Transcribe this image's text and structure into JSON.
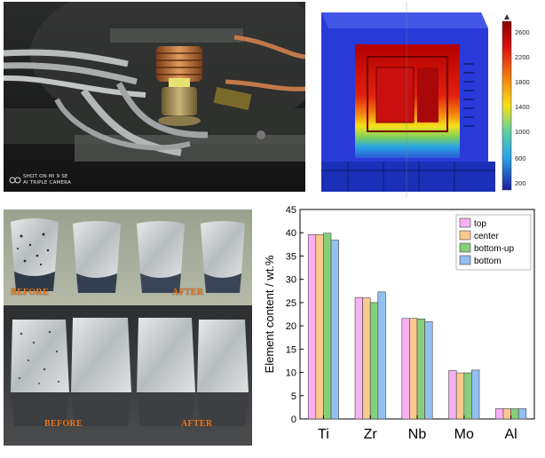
{
  "photo_top_left": {
    "watermark_line1": "SHOT ON MI 9 SE",
    "watermark_line2": "AI TRIPLE CAMERA"
  },
  "simulation": {
    "colorbar_ticks": [
      "2600",
      "2200",
      "1800",
      "1400",
      "1000",
      "600",
      "200"
    ],
    "colors": {
      "hot": "#b30000",
      "mid": "#f5e11a",
      "cool": "#2aa6e6",
      "cold": "#1c2fb8"
    }
  },
  "ingots": {
    "labels": {
      "top_before": "BEFORE",
      "top_after": "AFTER",
      "bottom_before": "BEFORE",
      "bottom_after": "AFTER"
    }
  },
  "chart_data": {
    "type": "bar",
    "categories": [
      "Ti",
      "Zr",
      "Nb",
      "Mo",
      "Al"
    ],
    "series": [
      {
        "name": "top",
        "color": "#f7b0f2",
        "values": [
          39.6,
          26.1,
          21.6,
          10.4,
          2.2
        ]
      },
      {
        "name": "center",
        "color": "#fbc98e",
        "values": [
          39.6,
          26.0,
          21.6,
          9.9,
          2.2
        ]
      },
      {
        "name": "bottom-up",
        "color": "#86cf7a",
        "values": [
          39.9,
          25.0,
          21.5,
          9.9,
          2.2
        ]
      },
      {
        "name": "bottom",
        "color": "#93c0f2",
        "values": [
          38.4,
          27.3,
          20.9,
          10.5,
          2.2
        ]
      }
    ],
    "ylabel": "Element content / wt.%",
    "xlabel": "",
    "ylim": [
      0,
      45
    ],
    "yticks": [
      0,
      5,
      10,
      15,
      20,
      25,
      30,
      35,
      40,
      45
    ],
    "legend_position": "top-right",
    "grid": false
  }
}
